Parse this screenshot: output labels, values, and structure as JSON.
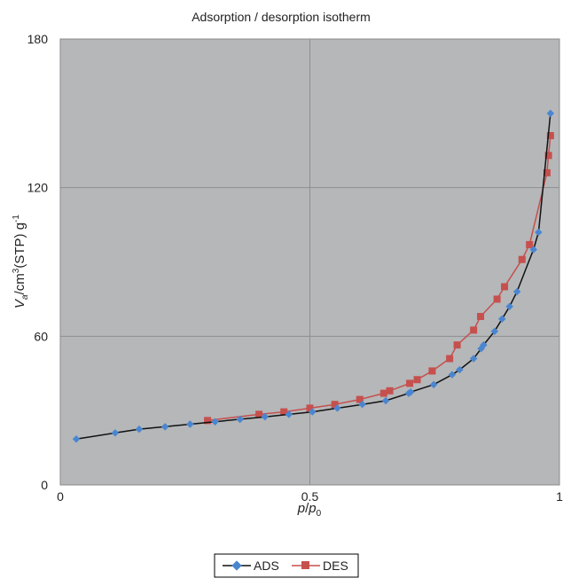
{
  "chart_data": {
    "type": "line",
    "title": "Adsorption / desorption isotherm",
    "xlabel": {
      "p": "p",
      "slash": "/",
      "p0": "p",
      "sub0": "0"
    },
    "ylabel": {
      "v": "V",
      "sub": "a",
      "unit1": "/cm",
      "sup3": "3",
      "unit2": "(STP) g",
      "supm1": "-1"
    },
    "xlim": [
      0,
      1
    ],
    "ylim": [
      0,
      180
    ],
    "xticks": [
      0,
      0.5,
      1
    ],
    "xtick_labels": [
      "0",
      "0.5",
      "1"
    ],
    "yticks": [
      0,
      60,
      120,
      180
    ],
    "ytick_labels": [
      "0",
      "60",
      "120",
      "180"
    ],
    "grid": true,
    "legend_position": "bottom-center",
    "plot_background": "#b5b7b9",
    "series": [
      {
        "name": "ADS",
        "color": "#4a86d0",
        "line_color": "#111111",
        "marker": "diamond",
        "x": [
          0.032,
          0.11,
          0.158,
          0.21,
          0.26,
          0.31,
          0.36,
          0.41,
          0.458,
          0.505,
          0.555,
          0.605,
          0.652,
          0.698,
          0.702,
          0.748,
          0.785,
          0.8,
          0.828,
          0.843,
          0.848,
          0.87,
          0.885,
          0.9,
          0.915,
          0.948,
          0.958,
          0.982
        ],
        "y": [
          18.5,
          21,
          22.5,
          23.5,
          24.5,
          25.5,
          26.5,
          27.5,
          28.5,
          29.5,
          31,
          32.5,
          34,
          37,
          37.5,
          40.5,
          44.5,
          46.5,
          51,
          55,
          56.5,
          62,
          67,
          72,
          78,
          95,
          102,
          150
        ]
      },
      {
        "name": "DES",
        "color": "#c6504e",
        "line_color": "#c6504e",
        "marker": "square",
        "x": [
          0.295,
          0.398,
          0.448,
          0.5,
          0.55,
          0.6,
          0.648,
          0.66,
          0.7,
          0.715,
          0.745,
          0.78,
          0.795,
          0.828,
          0.842,
          0.875,
          0.89,
          0.925,
          0.94,
          0.975,
          0.978,
          0.982
        ],
        "y": [
          26,
          28.5,
          29.5,
          31,
          32.5,
          34.5,
          37,
          38,
          41,
          42.5,
          46,
          51,
          56.5,
          62.5,
          68,
          75,
          80,
          91,
          97,
          126,
          133,
          141
        ]
      }
    ]
  }
}
